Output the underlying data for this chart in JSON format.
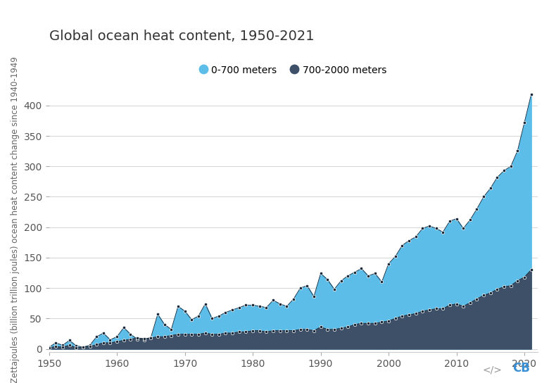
{
  "title": "Global ocean heat content, 1950-2021",
  "ylabel": "Zettajoules (billion trillion joules) ocean heat content change since 1940-1949",
  "years": [
    1950,
    1951,
    1952,
    1953,
    1954,
    1955,
    1956,
    1957,
    1958,
    1959,
    1960,
    1961,
    1962,
    1963,
    1964,
    1965,
    1966,
    1967,
    1968,
    1969,
    1970,
    1971,
    1972,
    1973,
    1974,
    1975,
    1976,
    1977,
    1978,
    1979,
    1980,
    1981,
    1982,
    1983,
    1984,
    1985,
    1986,
    1987,
    1988,
    1989,
    1990,
    1991,
    1992,
    1993,
    1994,
    1995,
    1996,
    1997,
    1998,
    1999,
    2000,
    2001,
    2002,
    2003,
    2004,
    2005,
    2006,
    2007,
    2008,
    2009,
    2010,
    2011,
    2012,
    2013,
    2014,
    2015,
    2016,
    2017,
    2018,
    2019,
    2020,
    2021
  ],
  "shallow": [
    3,
    10,
    6,
    14,
    5,
    3,
    6,
    20,
    26,
    15,
    20,
    35,
    24,
    16,
    15,
    19,
    57,
    40,
    32,
    70,
    62,
    48,
    54,
    74,
    50,
    54,
    60,
    64,
    68,
    72,
    72,
    70,
    68,
    80,
    74,
    70,
    82,
    100,
    104,
    86,
    124,
    114,
    98,
    112,
    120,
    126,
    132,
    120,
    124,
    110,
    140,
    152,
    170,
    178,
    184,
    198,
    202,
    198,
    192,
    210,
    214,
    198,
    212,
    230,
    250,
    264,
    282,
    293,
    300,
    326,
    372,
    418
  ],
  "deep": [
    2,
    4,
    3,
    6,
    2,
    3,
    4,
    7,
    10,
    10,
    12,
    14,
    16,
    18,
    17,
    18,
    20,
    20,
    22,
    24,
    24,
    24,
    24,
    26,
    24,
    24,
    26,
    26,
    28,
    28,
    30,
    30,
    28,
    30,
    30,
    30,
    30,
    32,
    32,
    30,
    36,
    32,
    32,
    34,
    36,
    40,
    42,
    42,
    42,
    44,
    46,
    50,
    54,
    56,
    58,
    62,
    64,
    66,
    66,
    72,
    74,
    70,
    76,
    82,
    88,
    92,
    98,
    102,
    104,
    112,
    118,
    130
  ],
  "shallow_color": "#5bbde8",
  "deep_color": "#3d5068",
  "marker_color": "#1a2a3a",
  "background_color": "#ffffff",
  "grid_color": "#d8d8d8",
  "legend_label_shallow": "0-700 meters",
  "legend_label_deep": "700-2000 meters",
  "xlim": [
    1950,
    2022
  ],
  "ylim": [
    -5,
    430
  ],
  "yticks": [
    0,
    50,
    100,
    150,
    200,
    250,
    300,
    350,
    400
  ],
  "xticks": [
    1950,
    1960,
    1970,
    1980,
    1990,
    2000,
    2010,
    2020
  ],
  "title_fontsize": 14,
  "tick_fontsize": 10,
  "ylabel_fontsize": 8.5
}
